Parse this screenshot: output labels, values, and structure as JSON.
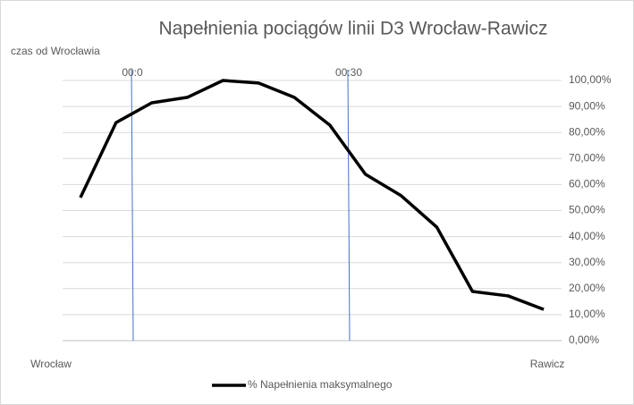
{
  "chart_data": {
    "type": "line",
    "title": "Napełnienia pociągów linii D3 Wrocław-Rawicz",
    "axis_label": "czas od Wrocławia",
    "categories": [
      "Wrocław",
      null,
      null,
      null,
      null,
      null,
      null,
      null,
      null,
      null,
      null,
      null,
      null,
      "Rawicz"
    ],
    "series": [
      {
        "name": "% Napełnienia maksymalnego",
        "color": "#000000",
        "values": [
          55,
          83.8,
          91.4,
          93.5,
          100,
          99,
          93.5,
          82.8,
          63.9,
          55.7,
          43.6,
          18.9,
          17.2,
          12
        ]
      }
    ],
    "ylim": [
      0,
      100
    ],
    "yticks": [
      {
        "value": 0,
        "label": "0,00%"
      },
      {
        "value": 10,
        "label": "10,00%"
      },
      {
        "value": 20,
        "label": "20,00%"
      },
      {
        "value": 30,
        "label": "30,00%"
      },
      {
        "value": 40,
        "label": "40,00%"
      },
      {
        "value": 50,
        "label": "50,00%"
      },
      {
        "value": 60,
        "label": "60,00%"
      },
      {
        "value": 70,
        "label": "70,00%"
      },
      {
        "value": 80,
        "label": "80,00%"
      },
      {
        "value": 90,
        "label": "90,00%"
      },
      {
        "value": 100,
        "label": "100,00%"
      }
    ],
    "annotations": [
      {
        "label": "00:0"
      },
      {
        "label": "00:30"
      }
    ],
    "grid": true,
    "legend": "bottom"
  }
}
